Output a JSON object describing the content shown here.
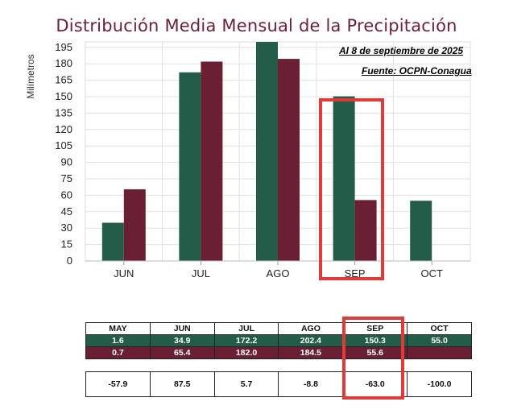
{
  "chart_data": {
    "type": "bar",
    "title": "Distribución Media Mensual de la Precipitación",
    "ylabel": "Milímetros",
    "xlabel": "",
    "ylim": [
      0,
      200
    ],
    "yticks": [
      0,
      15,
      30,
      45,
      60,
      75,
      90,
      105,
      120,
      135,
      150,
      165,
      180,
      195
    ],
    "categories": [
      "JUN",
      "JUL",
      "AGO",
      "SEP",
      "OCT"
    ],
    "series": [
      {
        "color": "#245c4a",
        "values": [
          34.9,
          172.2,
          202.4,
          150.3,
          55.0
        ]
      },
      {
        "color": "#6b1f33",
        "values": [
          65.4,
          182.0,
          184.5,
          55.6,
          null
        ]
      }
    ],
    "grid": true,
    "highlight_category": "SEP",
    "highlight_color": "#e03b3b",
    "annotations": [
      "Al 8 de septiembre de 2025",
      "Fuente: OCPN-Conagua"
    ]
  },
  "table": {
    "headers": [
      "MAY",
      "JUN",
      "JUL",
      "AGO",
      "SEP",
      "OCT"
    ],
    "row_green": [
      "1.6",
      "34.9",
      "172.2",
      "202.4",
      "150.3",
      "55.0"
    ],
    "row_red": [
      "0.7",
      "65.4",
      "182.0",
      "184.5",
      "55.6",
      ""
    ],
    "row_diff": [
      "-57.9",
      "87.5",
      "5.7",
      "-8.8",
      "-63.0",
      "-100.0"
    ],
    "highlight_column": "SEP"
  }
}
